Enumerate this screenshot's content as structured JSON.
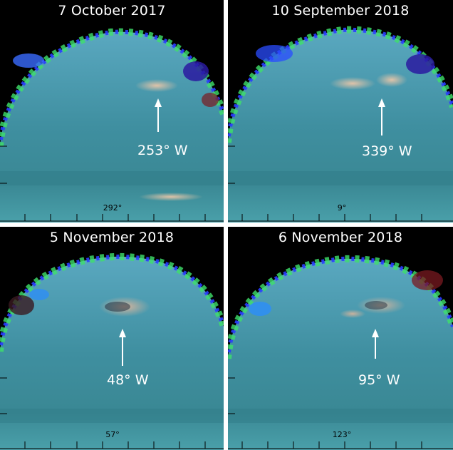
{
  "figure": {
    "panels": [
      {
        "title": "7 October 2017",
        "longitude_label": "253° W",
        "meridian_label": "292°"
      },
      {
        "title": "10 September 2018",
        "longitude_label": "339° W",
        "meridian_label": "9°"
      },
      {
        "title": "5 November 2018",
        "longitude_label": "48° W",
        "meridian_label": "57°"
      },
      {
        "title": "6 November 2018",
        "longitude_label": "95° W",
        "meridian_label": "123°"
      }
    ]
  },
  "colors": {
    "background": "#000000",
    "disk_main": "#3f8fa0",
    "disk_lower": "#4aa0aa",
    "limb_blue": "#2a3cff",
    "limb_green": "#3fe06a",
    "limb_red": "#7a1a20",
    "storm": "#e8b89a",
    "arrow": "#ffffff"
  }
}
